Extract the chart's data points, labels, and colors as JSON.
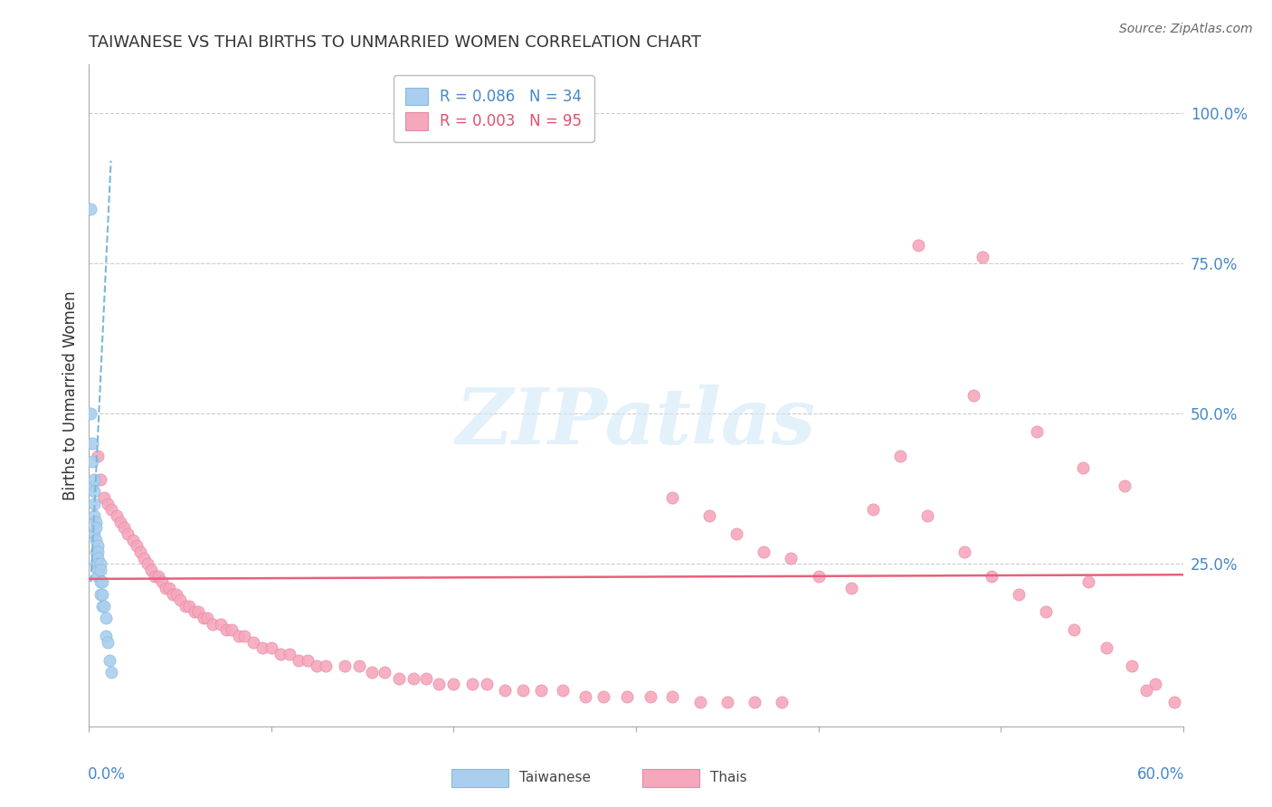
{
  "title": "TAIWANESE VS THAI BIRTHS TO UNMARRIED WOMEN CORRELATION CHART",
  "source": "Source: ZipAtlas.com",
  "ylabel": "Births to Unmarried Women",
  "ytick_labels": [
    "100.0%",
    "75.0%",
    "50.0%",
    "25.0%"
  ],
  "ytick_values": [
    1.0,
    0.75,
    0.5,
    0.25
  ],
  "xlim": [
    0.0,
    0.6
  ],
  "ylim": [
    -0.02,
    1.08
  ],
  "legend_entry1": "R = 0.086   N = 34",
  "legend_entry2": "R = 0.003   N = 95",
  "taiwanese_color": "#aacfee",
  "thais_color": "#f5a8bc",
  "blue_trend_color": "#7ab8d9",
  "pink_trend_color": "#e8607a",
  "taiwanese_x": [
    0.001,
    0.001,
    0.002,
    0.002,
    0.002,
    0.003,
    0.003,
    0.003,
    0.003,
    0.003,
    0.004,
    0.004,
    0.004,
    0.004,
    0.004,
    0.005,
    0.005,
    0.005,
    0.005,
    0.005,
    0.005,
    0.006,
    0.006,
    0.006,
    0.006,
    0.007,
    0.007,
    0.007,
    0.008,
    0.009,
    0.009,
    0.01,
    0.011,
    0.012
  ],
  "taiwanese_y": [
    0.84,
    0.5,
    0.45,
    0.42,
    0.38,
    0.39,
    0.37,
    0.35,
    0.33,
    0.3,
    0.32,
    0.31,
    0.29,
    0.27,
    0.25,
    0.28,
    0.27,
    0.26,
    0.25,
    0.24,
    0.23,
    0.25,
    0.24,
    0.22,
    0.2,
    0.22,
    0.2,
    0.18,
    0.18,
    0.16,
    0.13,
    0.12,
    0.09,
    0.07
  ],
  "thais_x": [
    0.005,
    0.006,
    0.008,
    0.01,
    0.012,
    0.015,
    0.017,
    0.019,
    0.021,
    0.024,
    0.026,
    0.028,
    0.03,
    0.032,
    0.034,
    0.036,
    0.038,
    0.04,
    0.042,
    0.044,
    0.046,
    0.048,
    0.05,
    0.053,
    0.055,
    0.058,
    0.06,
    0.063,
    0.065,
    0.068,
    0.072,
    0.075,
    0.078,
    0.082,
    0.085,
    0.09,
    0.095,
    0.1,
    0.105,
    0.11,
    0.115,
    0.12,
    0.125,
    0.13,
    0.14,
    0.148,
    0.155,
    0.162,
    0.17,
    0.178,
    0.185,
    0.192,
    0.2,
    0.21,
    0.218,
    0.228,
    0.238,
    0.248,
    0.26,
    0.272,
    0.282,
    0.295,
    0.308,
    0.32,
    0.335,
    0.35,
    0.365,
    0.38,
    0.32,
    0.34,
    0.355,
    0.37,
    0.385,
    0.4,
    0.418,
    0.43,
    0.445,
    0.46,
    0.48,
    0.495,
    0.51,
    0.525,
    0.54,
    0.558,
    0.572,
    0.585,
    0.595,
    0.455,
    0.485,
    0.52,
    0.545,
    0.568,
    0.49,
    0.548,
    0.58
  ],
  "thais_y": [
    0.43,
    0.39,
    0.36,
    0.35,
    0.34,
    0.33,
    0.32,
    0.31,
    0.3,
    0.29,
    0.28,
    0.27,
    0.26,
    0.25,
    0.24,
    0.23,
    0.23,
    0.22,
    0.21,
    0.21,
    0.2,
    0.2,
    0.19,
    0.18,
    0.18,
    0.17,
    0.17,
    0.16,
    0.16,
    0.15,
    0.15,
    0.14,
    0.14,
    0.13,
    0.13,
    0.12,
    0.11,
    0.11,
    0.1,
    0.1,
    0.09,
    0.09,
    0.08,
    0.08,
    0.08,
    0.08,
    0.07,
    0.07,
    0.06,
    0.06,
    0.06,
    0.05,
    0.05,
    0.05,
    0.05,
    0.04,
    0.04,
    0.04,
    0.04,
    0.03,
    0.03,
    0.03,
    0.03,
    0.03,
    0.02,
    0.02,
    0.02,
    0.02,
    0.36,
    0.33,
    0.3,
    0.27,
    0.26,
    0.23,
    0.21,
    0.34,
    0.43,
    0.33,
    0.27,
    0.23,
    0.2,
    0.17,
    0.14,
    0.11,
    0.08,
    0.05,
    0.02,
    0.78,
    0.53,
    0.47,
    0.41,
    0.38,
    0.76,
    0.22,
    0.04
  ],
  "blue_trend_x": [
    0.001,
    0.012
  ],
  "blue_trend_y": [
    0.22,
    0.92
  ],
  "pink_trend_x": [
    0.0,
    0.6
  ],
  "pink_trend_y": [
    0.225,
    0.232
  ],
  "watermark_text": "ZIPatlas",
  "background_color": "#ffffff",
  "grid_color": "#cccccc"
}
